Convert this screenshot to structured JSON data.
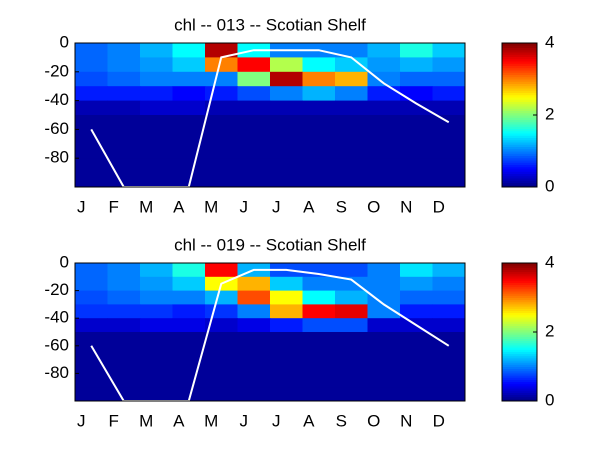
{
  "chart_data": [
    {
      "type": "heatmap",
      "title": "chl -- 013 -- Scotian Shelf",
      "categories": [
        "J",
        "F",
        "M",
        "A",
        "M",
        "J",
        "J",
        "A",
        "S",
        "O",
        "N",
        "D"
      ],
      "ylim": [
        -100,
        0
      ],
      "yticks": [
        0,
        -20,
        -40,
        -60,
        -80
      ],
      "row_edges": [
        0,
        -10,
        -20,
        -30,
        -40,
        -50,
        -60,
        -70,
        -80,
        -90,
        -100
      ],
      "z": [
        [
          0.9,
          1.0,
          1.2,
          1.5,
          3.8,
          1.5,
          1.0,
          1.0,
          1.0,
          1.2,
          1.6,
          1.3
        ],
        [
          0.9,
          1.0,
          1.1,
          1.3,
          3.0,
          3.5,
          2.2,
          1.5,
          1.3,
          1.1,
          1.2,
          1.1
        ],
        [
          0.8,
          0.9,
          1.0,
          1.0,
          1.0,
          2.0,
          3.8,
          3.0,
          2.8,
          1.0,
          0.9,
          0.9
        ],
        [
          0.6,
          0.6,
          0.6,
          0.5,
          0.6,
          0.8,
          1.0,
          1.2,
          1.0,
          0.6,
          0.5,
          0.6
        ],
        [
          0.2,
          0.2,
          0.3,
          0.3,
          0.2,
          0.2,
          0.2,
          0.2,
          0.2,
          0.2,
          0.2,
          0.2
        ],
        [
          0.1,
          0.1,
          0.1,
          0.1,
          0.1,
          0.1,
          0.1,
          0.1,
          0.1,
          0.1,
          0.1,
          0.1
        ],
        [
          0.1,
          0.1,
          0.1,
          0.1,
          0.1,
          0.1,
          0.1,
          0.1,
          0.1,
          0.1,
          0.1,
          0.1
        ],
        [
          0.1,
          0.1,
          0.1,
          0.1,
          0.1,
          0.1,
          0.1,
          0.1,
          0.1,
          0.1,
          0.1,
          0.1
        ],
        [
          0.1,
          0.1,
          0.1,
          0.1,
          0.1,
          0.1,
          0.1,
          0.1,
          0.1,
          0.1,
          0.1,
          0.1
        ],
        [
          0.1,
          0.1,
          0.1,
          0.1,
          0.1,
          0.1,
          0.1,
          0.1,
          0.1,
          0.1,
          0.1,
          0.1
        ]
      ],
      "line": {
        "color": "#ffffff",
        "values": [
          -60,
          -100,
          -100,
          -100,
          -10,
          -5,
          -5,
          -5,
          -10,
          -28,
          -42,
          -55
        ]
      },
      "colormap": "jet",
      "clim": [
        0,
        4
      ],
      "cticks": [
        0,
        2,
        4
      ]
    },
    {
      "type": "heatmap",
      "title": "chl -- 019 -- Scotian Shelf",
      "categories": [
        "J",
        "F",
        "M",
        "A",
        "M",
        "J",
        "J",
        "A",
        "S",
        "O",
        "N",
        "D"
      ],
      "ylim": [
        -100,
        0
      ],
      "yticks": [
        0,
        -20,
        -40,
        -60,
        -80
      ],
      "row_edges": [
        0,
        -10,
        -20,
        -30,
        -40,
        -50,
        -60,
        -70,
        -80,
        -90,
        -100
      ],
      "z": [
        [
          0.9,
          1.0,
          1.2,
          1.6,
          3.5,
          1.2,
          0.8,
          0.8,
          0.8,
          1.0,
          1.4,
          1.2
        ],
        [
          0.9,
          1.0,
          1.1,
          1.3,
          2.5,
          2.8,
          1.3,
          1.0,
          1.0,
          1.0,
          1.1,
          1.0
        ],
        [
          0.8,
          0.9,
          1.0,
          1.0,
          1.2,
          3.2,
          2.5,
          1.5,
          1.2,
          1.0,
          0.9,
          0.9
        ],
        [
          0.7,
          0.7,
          0.7,
          0.6,
          0.7,
          1.0,
          2.8,
          3.5,
          3.6,
          1.0,
          0.6,
          0.6
        ],
        [
          0.3,
          0.3,
          0.4,
          0.4,
          0.3,
          0.4,
          0.6,
          0.8,
          0.8,
          0.3,
          0.3,
          0.3
        ],
        [
          0.1,
          0.1,
          0.1,
          0.1,
          0.1,
          0.1,
          0.1,
          0.1,
          0.1,
          0.1,
          0.1,
          0.1
        ],
        [
          0.1,
          0.1,
          0.1,
          0.1,
          0.1,
          0.1,
          0.1,
          0.1,
          0.1,
          0.1,
          0.1,
          0.1
        ],
        [
          0.1,
          0.1,
          0.1,
          0.1,
          0.1,
          0.1,
          0.1,
          0.1,
          0.1,
          0.1,
          0.1,
          0.1
        ],
        [
          0.1,
          0.1,
          0.1,
          0.1,
          0.1,
          0.1,
          0.1,
          0.1,
          0.1,
          0.1,
          0.1,
          0.1
        ],
        [
          0.1,
          0.1,
          0.1,
          0.1,
          0.1,
          0.1,
          0.1,
          0.1,
          0.1,
          0.1,
          0.1,
          0.1
        ]
      ],
      "line": {
        "color": "#ffffff",
        "values": [
          -60,
          -100,
          -100,
          -100,
          -15,
          -5,
          -5,
          -8,
          -12,
          -30,
          -45,
          -60
        ]
      },
      "colormap": "jet",
      "clim": [
        0,
        4
      ],
      "cticks": [
        0,
        2,
        4
      ]
    }
  ]
}
